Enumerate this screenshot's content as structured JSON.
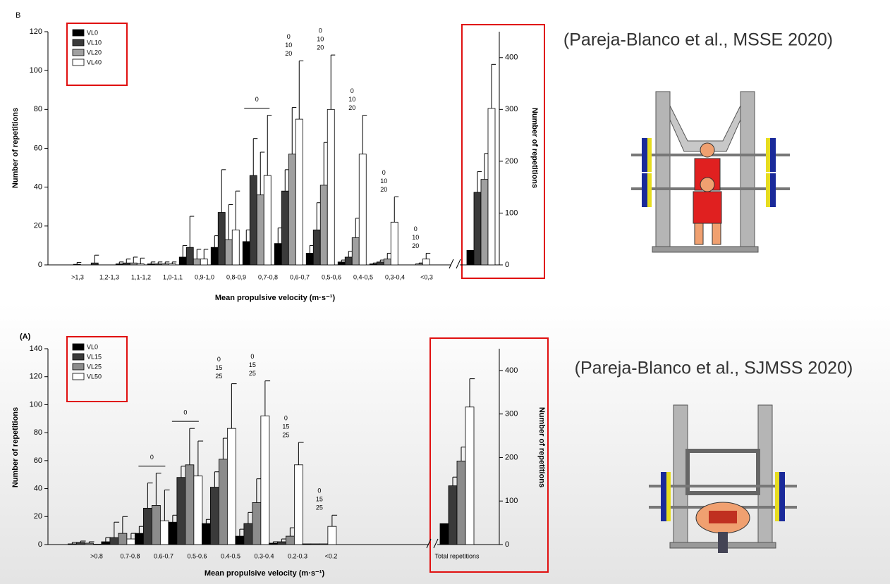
{
  "citations": [
    "(Pareja-Blanco et al., MSSE 2020)",
    "(Pareja-Blanco et al., SJMSS 2020)"
  ],
  "chart_data": [
    {
      "type": "bar",
      "panel": "B",
      "xlabel": "Mean propulsive velocity (m·s⁻¹)",
      "ylabel": "Number of repetitions",
      "y2label": "Number of repetitions",
      "categories": [
        ">1,3",
        "1,2-1,3",
        "1,1-1,2",
        "1,0-1,1",
        "0,9-1,0",
        "0,8-0,9",
        "0,7-0,8",
        "0,6-0,7",
        "0,5-0,6",
        "0,4-0,5",
        "0,3-0,4",
        "<0,3"
      ],
      "series": [
        {
          "name": "VL0",
          "color": "#000000",
          "values": [
            0,
            0,
            0.5,
            0.5,
            4,
            9,
            12,
            11,
            6,
            1.5,
            0.5,
            0
          ],
          "errors": [
            0,
            0,
            1,
            1,
            6,
            6,
            6,
            8,
            4,
            1,
            0.5,
            0
          ]
        },
        {
          "name": "VL10",
          "color": "#3a3a3a",
          "values": [
            0,
            1,
            1,
            0.5,
            9,
            27,
            46,
            38,
            18,
            4,
            1.5,
            0
          ],
          "errors": [
            0,
            4,
            2,
            1,
            16,
            22,
            19,
            11,
            14,
            3,
            1,
            0
          ]
        },
        {
          "name": "VL20",
          "color": "#a0a0a0",
          "values": [
            0,
            0,
            1,
            0.5,
            3,
            13,
            36,
            57,
            41,
            14,
            3,
            0.5
          ],
          "errors": [
            0,
            0,
            3,
            1,
            5,
            18,
            22,
            24,
            22,
            10,
            3,
            0.5
          ]
        },
        {
          "name": "VL40",
          "color": "#ffffff",
          "values": [
            0.3,
            0,
            0.5,
            0.5,
            3,
            18,
            46,
            75,
            80,
            57,
            22,
            3
          ],
          "errors": [
            1,
            0,
            3,
            1,
            5,
            20,
            31,
            30,
            28,
            20,
            13,
            3
          ]
        }
      ],
      "total": {
        "axis": "y2",
        "values": [
          28,
          140,
          165,
          302
        ],
        "errors": [
          0,
          40,
          50,
          85
        ]
      },
      "annotations": [
        {
          "category": 6,
          "lines": [
            "0"
          ],
          "bracket": true
        },
        {
          "category": 7,
          "lines": [
            "0",
            "10",
            "20"
          ]
        },
        {
          "category": 8,
          "lines": [
            "0",
            "10",
            "20"
          ]
        },
        {
          "category": 9,
          "lines": [
            "0",
            "10",
            "20"
          ]
        },
        {
          "category": 10,
          "lines": [
            "0",
            "10",
            "20"
          ]
        },
        {
          "category": 11,
          "lines": [
            "0",
            "10",
            "20"
          ]
        }
      ],
      "ylim": [
        0,
        120
      ],
      "yticks": [
        0,
        20,
        40,
        60,
        80,
        100,
        120
      ],
      "y2lim": [
        0,
        450
      ],
      "y2ticks": [
        0,
        100,
        200,
        300,
        400
      ],
      "legend": "upper left"
    },
    {
      "type": "bar",
      "panel": "(A)",
      "xlabel": "Mean propulsive velocity (m·s⁻¹)",
      "ylabel": "Number of repetitions",
      "y2label": "Number of repetitions",
      "categories": [
        ">0.8",
        "0.7-0.8",
        "0.6-0.7",
        "0.5-0.6",
        "0.4-0.5",
        "0.3-0.4",
        "0.2-0.3",
        "<0.2"
      ],
      "series": [
        {
          "name": "VL0",
          "color": "#000000",
          "values": [
            0.5,
            2,
            8,
            16,
            15,
            6,
            1,
            0.5
          ],
          "errors": [
            1,
            3,
            5,
            5,
            3,
            5,
            1,
            0
          ]
        },
        {
          "name": "VL15",
          "color": "#3a3a3a",
          "values": [
            1.5,
            5,
            26,
            48,
            41,
            15,
            2,
            0.5
          ],
          "errors": [
            1,
            11,
            18,
            8,
            11,
            8,
            2,
            0
          ]
        },
        {
          "name": "VL25",
          "color": "#8c8c8c",
          "values": [
            1,
            8,
            28,
            57,
            61,
            30,
            6,
            0.5
          ],
          "errors": [
            1,
            12,
            23,
            26,
            15,
            17,
            6,
            0
          ]
        },
        {
          "name": "VL50",
          "color": "#ffffff",
          "values": [
            0.3,
            4,
            17,
            49,
            83,
            92,
            57,
            13
          ],
          "errors": [
            0,
            4,
            22,
            25,
            32,
            25,
            16,
            8
          ]
        }
      ],
      "total": {
        "label": "Total repetitions",
        "axis": "y2",
        "values": [
          48,
          135,
          192,
          316
        ],
        "errors": [
          0,
          20,
          32,
          65
        ]
      },
      "annotations": [
        {
          "category": 2,
          "lines": [
            "0"
          ],
          "bracket": true
        },
        {
          "category": 3,
          "lines": [
            "0"
          ],
          "bracket": true
        },
        {
          "category": 4,
          "lines": [
            "0",
            "15",
            "25"
          ]
        },
        {
          "category": 5,
          "lines": [
            "0",
            "15",
            "25"
          ]
        },
        {
          "category": 6,
          "lines": [
            "0",
            "15",
            "25"
          ]
        },
        {
          "category": 7,
          "lines": [
            "0",
            "15",
            "25"
          ]
        }
      ],
      "ylim": [
        0,
        140
      ],
      "yticks": [
        0,
        20,
        40,
        60,
        80,
        100,
        120,
        140
      ],
      "y2lim": [
        0,
        450
      ],
      "y2ticks": [
        0,
        100,
        200,
        300,
        400
      ],
      "legend": "upper left"
    }
  ]
}
